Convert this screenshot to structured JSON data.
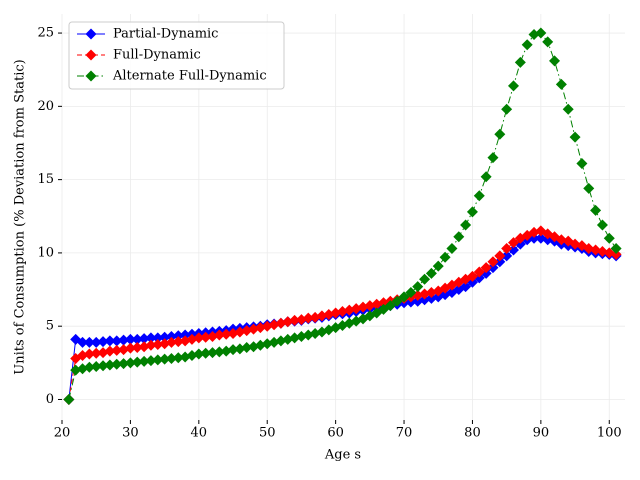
{
  "chart_data": {
    "type": "line",
    "xlabel": "Age s",
    "ylabel": "Units of Consumption (% Deviation from Static)",
    "x": [
      21,
      22,
      23,
      24,
      25,
      26,
      27,
      28,
      29,
      30,
      31,
      32,
      33,
      34,
      35,
      36,
      37,
      38,
      39,
      40,
      41,
      42,
      43,
      44,
      45,
      46,
      47,
      48,
      49,
      50,
      51,
      52,
      53,
      54,
      55,
      56,
      57,
      58,
      59,
      60,
      61,
      62,
      63,
      64,
      65,
      66,
      67,
      68,
      69,
      70,
      71,
      72,
      73,
      74,
      75,
      76,
      77,
      78,
      79,
      80,
      81,
      82,
      83,
      84,
      85,
      86,
      87,
      88,
      89,
      90,
      91,
      92,
      93,
      94,
      95,
      96,
      97,
      98,
      99,
      100,
      101
    ],
    "series": [
      {
        "name": "Partial-Dynamic",
        "color": "#0000ff",
        "linestyle": "solid",
        "values": [
          0,
          4.1,
          3.9,
          3.9,
          3.9,
          3.95,
          4.0,
          4.0,
          4.05,
          4.1,
          4.1,
          4.15,
          4.2,
          4.2,
          4.25,
          4.3,
          4.35,
          4.4,
          4.45,
          4.5,
          4.55,
          4.6,
          4.65,
          4.7,
          4.8,
          4.85,
          4.9,
          4.95,
          5.0,
          5.1,
          5.15,
          5.2,
          5.3,
          5.35,
          5.4,
          5.5,
          5.55,
          5.6,
          5.7,
          5.8,
          5.85,
          5.9,
          6.0,
          6.1,
          6.2,
          6.3,
          6.35,
          6.4,
          6.5,
          6.6,
          6.65,
          6.7,
          6.8,
          6.9,
          7.0,
          7.15,
          7.3,
          7.5,
          7.7,
          8.0,
          8.3,
          8.6,
          9.0,
          9.4,
          9.8,
          10.2,
          10.6,
          10.9,
          11.0,
          11.0,
          10.9,
          10.8,
          10.6,
          10.5,
          10.4,
          10.3,
          10.1,
          10.0,
          9.95,
          9.9,
          9.8
        ]
      },
      {
        "name": "Full-Dynamic",
        "color": "#ff0000",
        "linestyle": "dashed",
        "values": [
          0,
          2.8,
          3.0,
          3.1,
          3.15,
          3.2,
          3.3,
          3.35,
          3.4,
          3.5,
          3.55,
          3.6,
          3.7,
          3.75,
          3.8,
          3.9,
          3.95,
          4.0,
          4.1,
          4.2,
          4.25,
          4.3,
          4.4,
          4.45,
          4.5,
          4.6,
          4.7,
          4.8,
          4.9,
          5.0,
          5.1,
          5.2,
          5.3,
          5.4,
          5.45,
          5.55,
          5.6,
          5.7,
          5.8,
          5.9,
          6.0,
          6.1,
          6.2,
          6.3,
          6.4,
          6.5,
          6.6,
          6.7,
          6.8,
          6.9,
          7.0,
          7.1,
          7.2,
          7.3,
          7.4,
          7.6,
          7.8,
          8.0,
          8.2,
          8.4,
          8.7,
          9.0,
          9.4,
          9.8,
          10.3,
          10.7,
          11.0,
          11.2,
          11.4,
          11.5,
          11.3,
          11.1,
          10.9,
          10.8,
          10.6,
          10.5,
          10.3,
          10.2,
          10.1,
          10.0,
          9.9
        ]
      },
      {
        "name": "Alternate Full-Dynamic",
        "color": "#008000",
        "linestyle": "dashdot",
        "values": [
          0,
          2.0,
          2.1,
          2.2,
          2.25,
          2.3,
          2.35,
          2.4,
          2.45,
          2.5,
          2.55,
          2.6,
          2.65,
          2.7,
          2.75,
          2.8,
          2.85,
          2.9,
          3.0,
          3.1,
          3.15,
          3.2,
          3.25,
          3.3,
          3.4,
          3.45,
          3.55,
          3.6,
          3.7,
          3.8,
          3.9,
          4.0,
          4.1,
          4.2,
          4.3,
          4.4,
          4.5,
          4.6,
          4.75,
          4.9,
          5.05,
          5.2,
          5.35,
          5.5,
          5.7,
          5.9,
          6.15,
          6.4,
          6.7,
          7.0,
          7.3,
          7.7,
          8.2,
          8.6,
          9.1,
          9.7,
          10.3,
          11.1,
          11.9,
          12.8,
          13.9,
          15.2,
          16.5,
          18.1,
          19.8,
          21.4,
          23.0,
          24.2,
          24.9,
          25.0,
          24.4,
          23.1,
          21.5,
          19.8,
          17.9,
          16.1,
          14.4,
          12.9,
          11.9,
          11.0,
          10.3
        ]
      }
    ],
    "xlim": [
      20,
      102.3
    ],
    "xticks": [
      20,
      30,
      40,
      50,
      60,
      70,
      80,
      90,
      100
    ],
    "ylim": [
      -1.4,
      26.3
    ],
    "yticks": [
      0,
      5,
      10,
      15,
      20,
      25
    ],
    "grid": true,
    "legend": "upper left",
    "marker": "diamond"
  }
}
